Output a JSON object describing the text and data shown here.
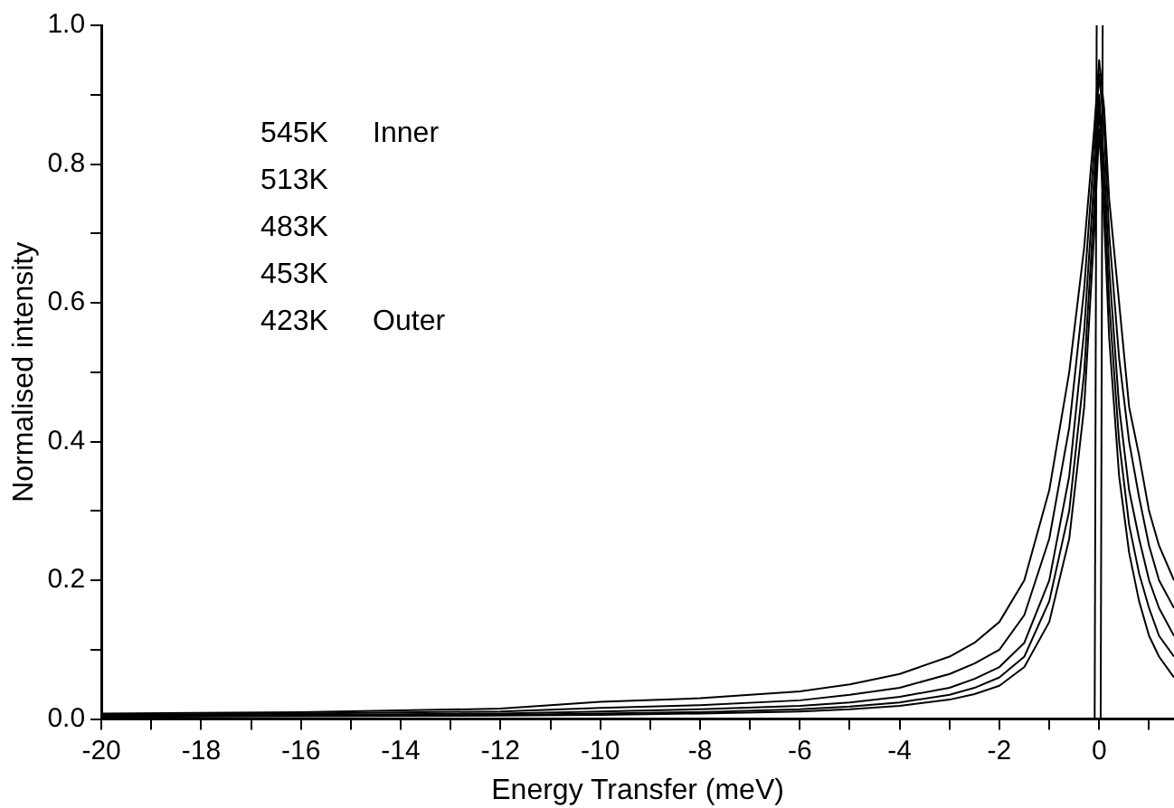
{
  "chart_data": {
    "type": "line",
    "xlabel": "Energy Transfer (meV)",
    "ylabel": "Normalised intensity",
    "xlim": [
      -20,
      1.5
    ],
    "ylim": [
      0,
      1
    ],
    "xticks": [
      -20,
      {
        "value": -19,
        "label": null
      },
      -18,
      {
        "value": -17,
        "label": null
      },
      -16,
      {
        "value": -15,
        "label": null
      },
      -14,
      {
        "value": -13,
        "label": null
      },
      -12,
      {
        "value": -11,
        "label": null
      },
      -10,
      {
        "value": -9,
        "label": null
      },
      -8,
      {
        "value": -7,
        "label": null
      },
      -6,
      {
        "value": -5,
        "label": null
      },
      -4,
      {
        "value": -3,
        "label": null
      },
      -2,
      {
        "value": -1,
        "label": null
      },
      0,
      {
        "value": 1,
        "label": null
      }
    ],
    "yticks": [
      {
        "value": 0,
        "label": "0.0"
      },
      {
        "value": 0.1,
        "label": null
      },
      {
        "value": 0.2,
        "label": "0.2"
      },
      {
        "value": 0.3,
        "label": null
      },
      {
        "value": 0.4,
        "label": "0.4"
      },
      {
        "value": 0.5,
        "label": null
      },
      {
        "value": 0.6,
        "label": "0.6"
      },
      {
        "value": 0.7,
        "label": null
      },
      {
        "value": 0.8,
        "label": "0.8"
      },
      {
        "value": 0.9,
        "label": null
      },
      {
        "value": 1,
        "label": "1.0"
      }
    ],
    "grid": false,
    "legend": false,
    "marker": "none",
    "line_style": "solid",
    "annotations": [
      "545K   Inner",
      "513K",
      "483K",
      "453K",
      "423K   Outer"
    ],
    "series": [
      {
        "color": "#000000",
        "x": [
          -20,
          -16,
          -12,
          -10,
          -8,
          -6,
          -5,
          -4,
          -3,
          -2.5,
          -2,
          -1.5,
          -1,
          -0.6,
          -0.3,
          -0.1,
          0,
          0.1,
          0.2,
          0.4,
          0.6,
          0.8,
          1,
          1.2,
          1.5
        ],
        "values": [
          0.008,
          0.01,
          0.015,
          0.025,
          0.03,
          0.04,
          0.05,
          0.065,
          0.09,
          0.11,
          0.14,
          0.2,
          0.33,
          0.5,
          0.68,
          0.85,
          0.95,
          0.88,
          0.75,
          0.6,
          0.45,
          0.38,
          0.3,
          0.25,
          0.2
        ]
      },
      {
        "color": "#000000",
        "x": [
          -20,
          -16,
          -12,
          -10,
          -8,
          -6,
          -5,
          -4,
          -3,
          -2.5,
          -2,
          -1.5,
          -1,
          -0.6,
          -0.3,
          -0.1,
          0,
          0.1,
          0.2,
          0.4,
          0.6,
          0.8,
          1,
          1.2,
          1.5
        ],
        "values": [
          0.006,
          0.008,
          0.011,
          0.016,
          0.02,
          0.027,
          0.035,
          0.045,
          0.065,
          0.08,
          0.1,
          0.15,
          0.26,
          0.42,
          0.62,
          0.82,
          0.93,
          0.85,
          0.7,
          0.52,
          0.4,
          0.32,
          0.25,
          0.2,
          0.16
        ]
      },
      {
        "color": "#000000",
        "x": [
          -20,
          -16,
          -12,
          -10,
          -8,
          -6,
          -5,
          -4,
          -3,
          -2.5,
          -2,
          -1.5,
          -1,
          -0.6,
          -0.3,
          -0.1,
          0,
          0.1,
          0.2,
          0.4,
          0.6,
          0.8,
          1,
          1.2,
          1.5
        ],
        "values": [
          0.005,
          0.006,
          0.008,
          0.011,
          0.014,
          0.019,
          0.024,
          0.032,
          0.045,
          0.058,
          0.075,
          0.11,
          0.2,
          0.35,
          0.56,
          0.78,
          0.9,
          0.8,
          0.65,
          0.45,
          0.33,
          0.26,
          0.2,
          0.16,
          0.12
        ]
      },
      {
        "color": "#000000",
        "x": [
          -20,
          -16,
          -12,
          -10,
          -8,
          -6,
          -5,
          -4,
          -3,
          -2.5,
          -2,
          -1.5,
          -1,
          -0.6,
          -0.3,
          -0.1,
          0,
          0.1,
          0.2,
          0.4,
          0.6,
          0.8,
          1,
          1.2,
          1.5
        ],
        "values": [
          0.004,
          0.005,
          0.006,
          0.008,
          0.01,
          0.014,
          0.018,
          0.024,
          0.035,
          0.045,
          0.06,
          0.09,
          0.17,
          0.3,
          0.5,
          0.74,
          0.88,
          0.76,
          0.6,
          0.4,
          0.28,
          0.21,
          0.16,
          0.12,
          0.09
        ]
      },
      {
        "color": "#000000",
        "x": [
          -20,
          -16,
          -12,
          -10,
          -8,
          -6,
          -5,
          -4,
          -3,
          -2.5,
          -2,
          -1.5,
          -1,
          -0.6,
          -0.3,
          -0.1,
          0,
          0.1,
          0.2,
          0.4,
          0.6,
          0.8,
          1,
          1.2,
          1.5
        ],
        "values": [
          0.003,
          0.004,
          0.005,
          0.006,
          0.008,
          0.011,
          0.014,
          0.019,
          0.028,
          0.036,
          0.048,
          0.075,
          0.14,
          0.26,
          0.45,
          0.7,
          0.85,
          0.72,
          0.55,
          0.35,
          0.24,
          0.17,
          0.12,
          0.09,
          0.06
        ]
      },
      {
        "color": "#000000",
        "x": [
          -0.09,
          -0.05
        ],
        "values": [
          0,
          1
        ]
      },
      {
        "color": "#000000",
        "x": [
          0.03,
          0.07
        ],
        "values": [
          0,
          1
        ]
      }
    ]
  }
}
